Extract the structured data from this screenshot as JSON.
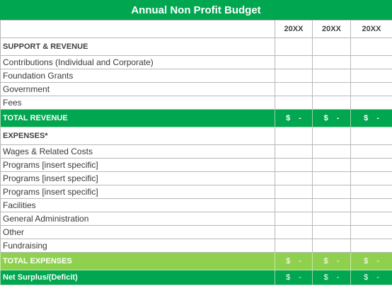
{
  "title": "Annual Non Profit Budget",
  "year_headers": [
    "20XX",
    "20XX",
    "20XX"
  ],
  "support_section": "SUPPORT & REVENUE",
  "revenue_items": [
    "Contributions (Individual and Corporate)",
    "Foundation Grants",
    "Government",
    "Fees"
  ],
  "total_revenue": {
    "label": "TOTAL REVENUE",
    "currency": "$",
    "value": "-"
  },
  "expenses_section": "EXPENSES*",
  "expense_items": [
    "Wages & Related Costs",
    "Programs [insert specific]",
    "Programs [insert specific]",
    "Programs [insert specific]",
    "Facilities",
    "General Administration",
    "Other",
    "Fundraising"
  ],
  "total_expenses": {
    "label": "TOTAL EXPENSES",
    "currency": "$",
    "value": "-"
  },
  "net_surplus": {
    "label": "Net Surplus/(Deficit)",
    "currency": "$",
    "value": "-"
  },
  "colors": {
    "header_green": "#00a650",
    "light_green": "#8fd14f"
  }
}
